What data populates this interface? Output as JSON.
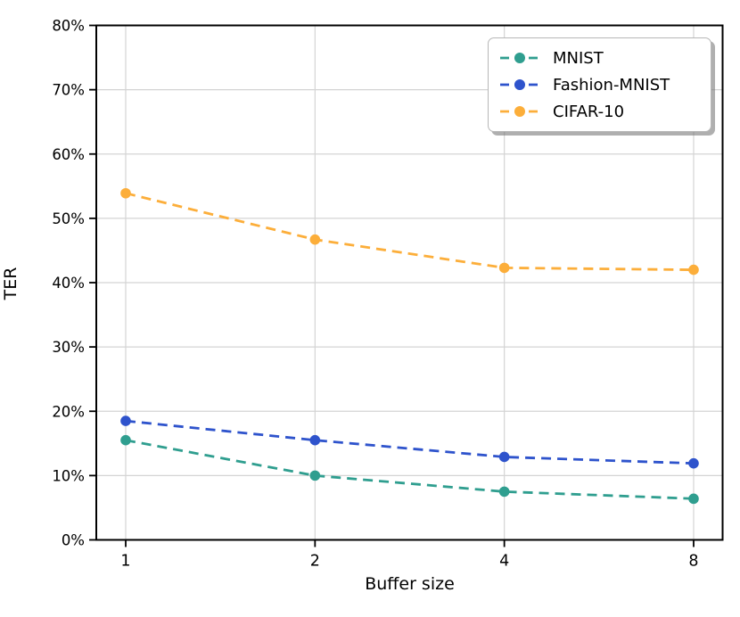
{
  "chart_data": {
    "type": "line",
    "x": [
      1,
      2,
      4,
      8
    ],
    "x_scale": "log2",
    "xtick_labels": [
      "1",
      "2",
      "4",
      "8"
    ],
    "yticks": [
      0,
      10,
      20,
      30,
      40,
      50,
      60,
      70,
      80
    ],
    "ytick_labels": [
      "0%",
      "10%",
      "20%",
      "30%",
      "40%",
      "50%",
      "60%",
      "70%",
      "80%"
    ],
    "xlabel": "Buffer size",
    "ylabel": "TER",
    "ylim": [
      0,
      80
    ],
    "xlim_log2": [
      -0.155,
      3.155
    ],
    "grid": true,
    "legend_position": "top-right",
    "line_style": "dashed",
    "marker": "circle",
    "series": [
      {
        "name": "MNIST",
        "color": "#2f9e8f",
        "values": [
          15.5,
          10.0,
          7.5,
          6.4
        ]
      },
      {
        "name": "Fashion-MNIST",
        "color": "#2e53cc",
        "values": [
          18.5,
          15.5,
          12.9,
          11.9
        ]
      },
      {
        "name": "CIFAR-10",
        "color": "#fcae3a",
        "values": [
          53.9,
          46.7,
          42.3,
          42.0
        ]
      }
    ],
    "colors": {
      "grid": "#d4d4d4",
      "spine": "#000000",
      "background": "#ffffff"
    }
  }
}
